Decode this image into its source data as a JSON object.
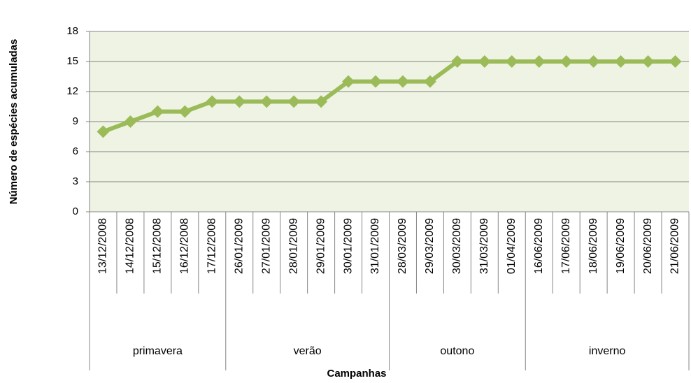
{
  "chart_data": {
    "type": "line",
    "ylabel": "Número de espécies acumuladas",
    "xlabel": "Campanhas",
    "groups": [
      {
        "name": "primavera",
        "categories": [
          "13/12/2008",
          "14/12/2008",
          "15/12/2008",
          "16/12/2008",
          "17/12/2008"
        ]
      },
      {
        "name": "verão",
        "categories": [
          "26/01/2009",
          "27/01/2009",
          "28/01/2009",
          "29/01/2009",
          "30/01/2009",
          "31/01/2009"
        ]
      },
      {
        "name": "outono",
        "categories": [
          "28/03/2009",
          "29/03/2009",
          "30/03/2009",
          "31/03/2009",
          "01/04/2009"
        ]
      },
      {
        "name": "inverno",
        "categories": [
          "16/06/2009",
          "17/06/2009",
          "18/06/2009",
          "19/06/2009",
          "20/06/2009",
          "21/06/2009"
        ]
      }
    ],
    "values": [
      8,
      9,
      10,
      10,
      11,
      11,
      11,
      11,
      11,
      13,
      13,
      13,
      13,
      15,
      15,
      15,
      15,
      15,
      15,
      15,
      15,
      15
    ],
    "color": "#9bbb59",
    "ylim": [
      0,
      18
    ],
    "yticks": [
      0,
      3,
      6,
      9,
      12,
      15,
      18
    ],
    "grid": true
  }
}
